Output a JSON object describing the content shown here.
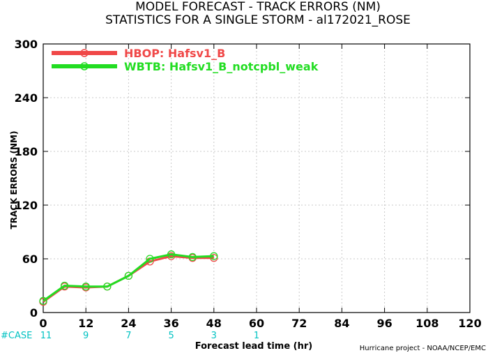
{
  "chart_data": {
    "type": "line",
    "title_line1": "MODEL FORECAST - TRACK ERRORS (NM)",
    "title_line2": "STATISTICS FOR A SINGLE STORM - al172021_ROSE",
    "xlabel": "Forecast lead time (hr)",
    "ylabel": "TRACK ERRORS (NM)",
    "xlim": [
      0,
      120
    ],
    "ylim": [
      0,
      300
    ],
    "x_ticks": [
      0,
      12,
      24,
      36,
      48,
      60,
      72,
      84,
      96,
      108,
      120
    ],
    "y_ticks": [
      0,
      60,
      120,
      180,
      240,
      300
    ],
    "x_tick_labels": [
      "0",
      "12",
      "24",
      "36",
      "48",
      "60",
      "72",
      "84",
      "96",
      "108",
      "120"
    ],
    "y_tick_labels": [
      "0",
      "60",
      "120",
      "180",
      "240",
      "300"
    ],
    "grid": true,
    "legend_position": "top-left",
    "series": [
      {
        "name": "HBOP: Hafsv1_B",
        "color": "#f04848",
        "x": [
          0,
          6,
          12,
          18,
          24,
          30,
          36,
          42,
          48
        ],
        "y": [
          12,
          29,
          28,
          29,
          41,
          57,
          63,
          61,
          61
        ]
      },
      {
        "name": "WBTB: Hafsv1_B_notcpbl_weak",
        "color": "#22dd22",
        "x": [
          0,
          6,
          12,
          18,
          24,
          30,
          36,
          42,
          48
        ],
        "y": [
          13,
          30,
          29,
          29,
          41,
          60,
          65,
          62,
          63
        ]
      }
    ],
    "cases": {
      "label": "#CASE",
      "x": [
        0,
        12,
        24,
        36,
        48,
        60
      ],
      "values": [
        "11",
        "9",
        "7",
        "5",
        "3",
        "1"
      ]
    },
    "credit": "Hurricane project - NOAA/NCEP/EMC"
  }
}
